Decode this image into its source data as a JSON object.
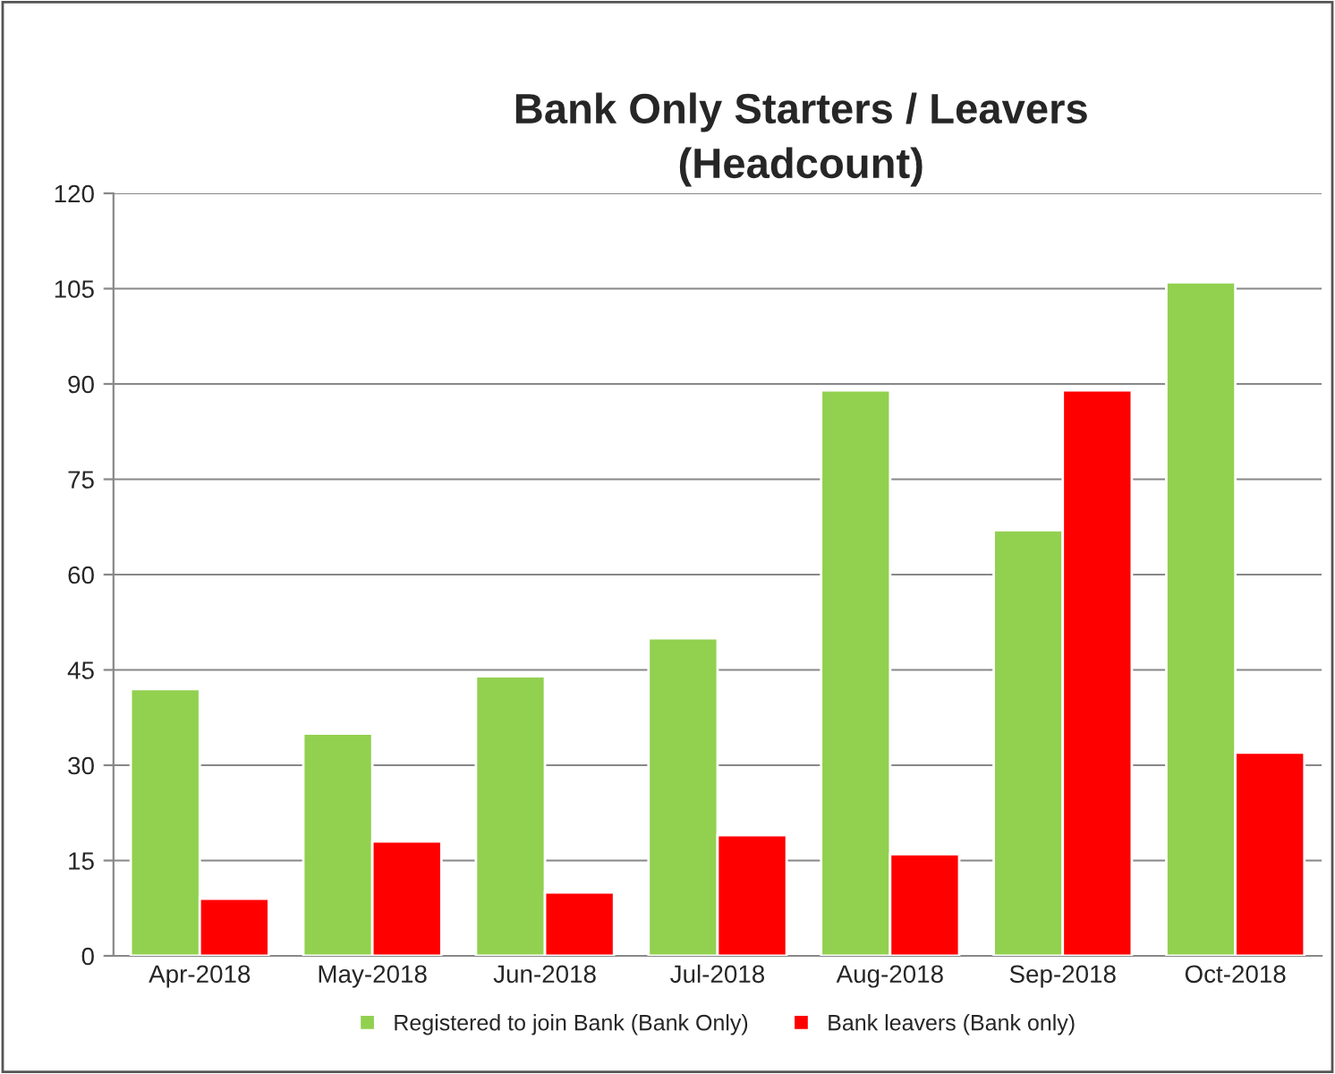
{
  "chart_data": {
    "type": "bar",
    "title": "Bank Only Starters / Leavers\n(Headcount)",
    "categories": [
      "Apr-2018",
      "May-2018",
      "Jun-2018",
      "Jul-2018",
      "Aug-2018",
      "Sep-2018",
      "Oct-2018"
    ],
    "series": [
      {
        "name": "Registered to join Bank (Bank Only)",
        "color": "#92d050",
        "values": [
          42,
          35,
          44,
          50,
          89,
          67,
          106
        ]
      },
      {
        "name": "Bank leavers (Bank only)",
        "color": "#ff0000",
        "values": [
          9,
          18,
          10,
          19,
          16,
          89,
          32
        ]
      }
    ],
    "ylim": [
      0,
      120
    ],
    "yticks": [
      0,
      15,
      30,
      45,
      60,
      75,
      90,
      105,
      120
    ],
    "grid": "y",
    "legend": "bottom"
  }
}
